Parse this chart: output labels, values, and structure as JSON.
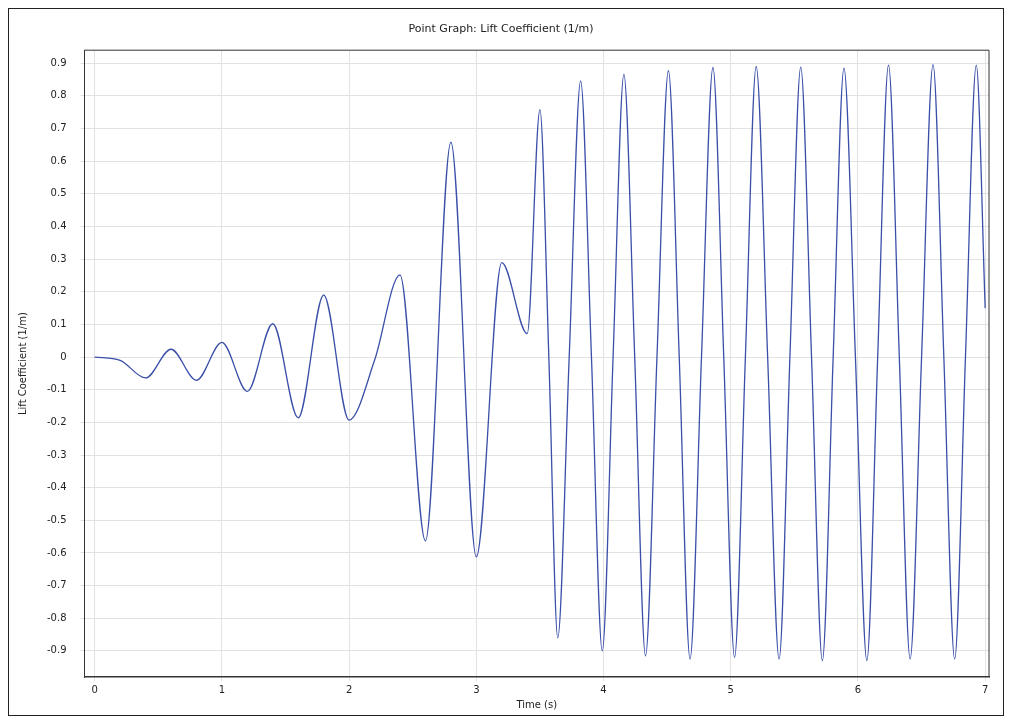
{
  "chart_data": {
    "type": "line",
    "title": "Point Graph: Lift Coefficient (1/m)",
    "xlabel": "Time (s)",
    "ylabel": "Lift Coefficient (1/m)",
    "xlim": [
      -0.08,
      7.03
    ],
    "ylim": [
      -0.98,
      0.94
    ],
    "xticks": [
      0,
      1,
      2,
      3,
      4,
      5,
      6,
      7
    ],
    "yticks": [
      -0.9,
      -0.8,
      -0.7,
      -0.6,
      -0.5,
      -0.4,
      -0.3,
      -0.2,
      -0.1,
      0,
      0.1,
      0.2,
      0.3,
      0.4,
      0.5,
      0.6,
      0.7,
      0.8,
      0.9
    ],
    "grid": true,
    "legend": false,
    "marker": "none",
    "line_style": "solid",
    "series": [
      {
        "color": "#3a4fa8",
        "x": [
          0,
          0.2,
          0.4,
          0.6,
          0.8,
          1.0,
          1.2,
          1.4,
          1.6,
          1.8,
          2.0,
          2.2,
          2.4,
          2.6,
          2.8,
          3.0,
          3.2,
          3.4,
          3.5,
          3.57,
          3.64,
          3.73,
          3.82,
          3.905,
          3.99,
          4.075,
          4.16,
          4.245,
          4.33,
          4.42,
          4.51,
          4.595,
          4.68,
          4.77,
          4.86,
          4.945,
          5.03,
          5.115,
          5.2,
          5.29,
          5.38,
          5.465,
          5.55,
          5.635,
          5.72,
          5.805,
          5.89,
          5.98,
          6.07,
          6.155,
          6.24,
          6.325,
          6.41,
          6.5,
          6.59,
          6.675,
          6.76,
          6.845,
          6.93,
          7.0
        ],
        "values": [
          0,
          -0.01,
          -0.064,
          0.024,
          -0.071,
          0.045,
          -0.105,
          0.102,
          -0.186,
          0.19,
          -0.193,
          -0.01,
          0.252,
          -0.563,
          0.658,
          -0.612,
          0.289,
          0.072,
          0.758,
          0,
          -0.86,
          0,
          0.846,
          0,
          -0.9,
          0,
          0.866,
          0,
          -0.915,
          0,
          0.877,
          0,
          -0.925,
          0,
          0.887,
          0,
          -0.92,
          0,
          0.89,
          0,
          -0.925,
          0,
          0.888,
          0,
          -0.93,
          0,
          0.885,
          0,
          -0.93,
          0,
          0.894,
          0,
          -0.925,
          0,
          0.896,
          0,
          -0.925,
          0,
          0.894,
          0.15
        ]
      }
    ]
  }
}
